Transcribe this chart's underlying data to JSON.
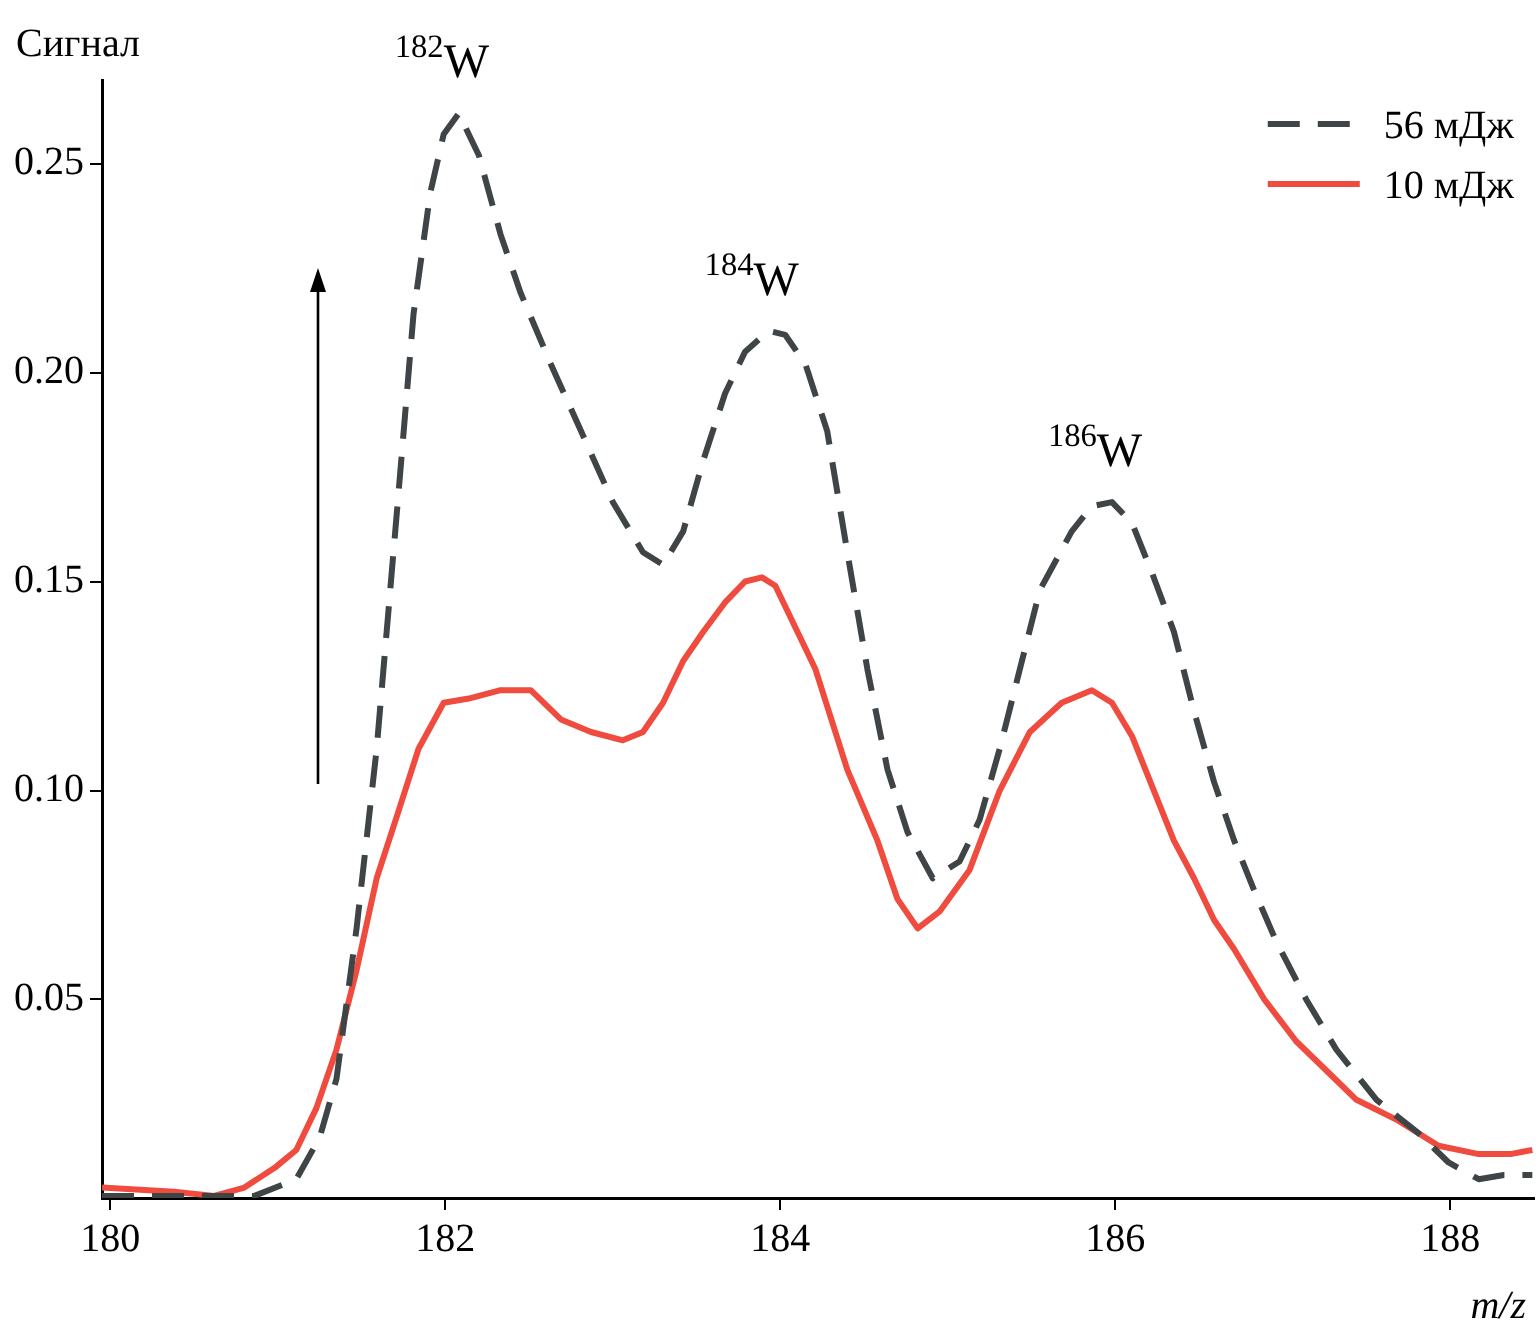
{
  "chart_data": {
    "type": "line",
    "ylabel": "Сигнал",
    "xlabel": "m/z",
    "xlim": [
      179.95,
      188.5
    ],
    "xticks": [
      180,
      182,
      184,
      186,
      188
    ],
    "ylim": [
      0.0025,
      0.27
    ],
    "yticks": [
      0.05,
      {
        "value": 0.1,
        "label": "0.10"
      },
      0.15,
      {
        "value": 0.2,
        "label": "0.20"
      },
      0.25
    ],
    "grid": false,
    "legend": "top right",
    "marker": "none",
    "annotations": [
      {
        "text": "$^{182}$W",
        "x": 182.08,
        "y": 0.262
      },
      {
        "text": "$^{184}$W",
        "x": 183.93,
        "y": 0.21
      },
      {
        "text": "$^{186}$W",
        "x": 185.98,
        "y": 0.169
      }
    ],
    "series": [
      {
        "name": "56 мДж",
        "color": "#3f4447",
        "line_style": "dashed",
        "x": [
          179.95,
          180.38,
          180.86,
          181.11,
          181.25,
          181.35,
          181.47,
          181.59,
          181.72,
          181.81,
          181.91,
          181.99,
          182.08,
          182.2,
          182.33,
          182.45,
          182.63,
          182.81,
          183.0,
          183.18,
          183.3,
          183.42,
          183.54,
          183.67,
          183.79,
          183.93,
          184.03,
          184.15,
          184.28,
          184.4,
          184.52,
          184.64,
          184.76,
          184.91,
          185.07,
          185.19,
          185.31,
          185.43,
          185.55,
          185.74,
          185.86,
          185.98,
          186.1,
          186.22,
          186.35,
          186.47,
          186.59,
          186.71,
          186.83,
          186.96,
          187.14,
          187.32,
          187.56,
          187.81,
          187.99,
          188.17,
          188.32,
          188.49
        ],
        "values": [
          0.003,
          0.003,
          0.003,
          0.007,
          0.017,
          0.031,
          0.067,
          0.11,
          0.171,
          0.214,
          0.243,
          0.257,
          0.262,
          0.252,
          0.233,
          0.219,
          0.202,
          0.186,
          0.169,
          0.157,
          0.154,
          0.162,
          0.179,
          0.195,
          0.205,
          0.21,
          0.209,
          0.202,
          0.186,
          0.157,
          0.129,
          0.105,
          0.09,
          0.079,
          0.083,
          0.093,
          0.11,
          0.129,
          0.148,
          0.162,
          0.168,
          0.169,
          0.164,
          0.152,
          0.138,
          0.119,
          0.102,
          0.088,
          0.076,
          0.064,
          0.05,
          0.038,
          0.026,
          0.018,
          0.011,
          0.007,
          0.008,
          0.008
        ]
      },
      {
        "name": "10 мДж",
        "color": "#ef4b3f",
        "line_style": "solid",
        "x": [
          179.95,
          180.38,
          180.62,
          180.8,
          180.99,
          181.11,
          181.23,
          181.35,
          181.47,
          181.59,
          181.72,
          181.84,
          181.99,
          182.14,
          182.33,
          182.51,
          182.69,
          182.87,
          183.06,
          183.18,
          183.3,
          183.42,
          183.54,
          183.67,
          183.79,
          183.89,
          183.97,
          184.09,
          184.21,
          184.4,
          184.58,
          184.7,
          184.82,
          184.95,
          185.13,
          185.31,
          185.49,
          185.68,
          185.86,
          185.98,
          186.1,
          186.22,
          186.35,
          186.47,
          186.59,
          186.71,
          186.89,
          187.08,
          187.26,
          187.44,
          187.69,
          187.93,
          188.17,
          188.36,
          188.49
        ],
        "values": [
          0.005,
          0.004,
          0.003,
          0.005,
          0.01,
          0.014,
          0.024,
          0.038,
          0.057,
          0.079,
          0.095,
          0.11,
          0.121,
          0.122,
          0.124,
          0.124,
          0.117,
          0.114,
          0.112,
          0.114,
          0.121,
          0.131,
          0.138,
          0.145,
          0.15,
          0.151,
          0.149,
          0.139,
          0.129,
          0.105,
          0.088,
          0.074,
          0.067,
          0.071,
          0.081,
          0.1,
          0.114,
          0.121,
          0.124,
          0.121,
          0.113,
          0.101,
          0.088,
          0.079,
          0.069,
          0.062,
          0.05,
          0.04,
          0.033,
          0.026,
          0.021,
          0.015,
          0.013,
          0.013,
          0.014
        ]
      }
    ]
  }
}
